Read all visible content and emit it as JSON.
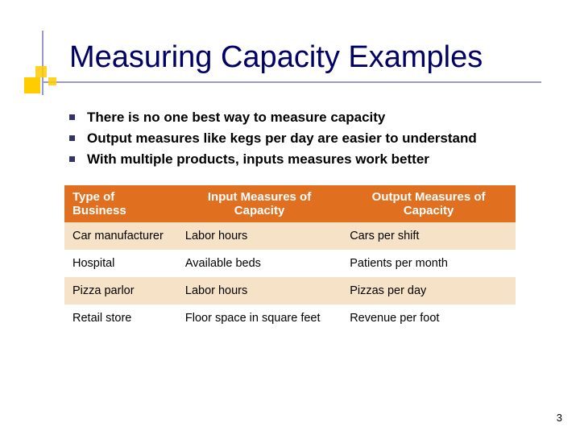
{
  "title": "Measuring Capacity Examples",
  "bullets": [
    "There is no one best way to measure capacity",
    "Output measures like kegs per day are easier to understand",
    "With multiple products, inputs measures work better"
  ],
  "table": {
    "headers": [
      "Type of Business",
      "Input Measures of Capacity",
      "Output Measures of Capacity"
    ],
    "rows": [
      [
        "Car manufacturer",
        "Labor hours",
        "Cars per shift"
      ],
      [
        "Hospital",
        "Available beds",
        "Patients per month"
      ],
      [
        "Pizza parlor",
        "Labor hours",
        "Pizzas per day"
      ],
      [
        "Retail store",
        "Floor space in square feet",
        "Revenue per foot"
      ]
    ],
    "header_bg": "#e07020",
    "header_color": "#ffffff",
    "row_alt_bg": "#f6e3c7",
    "row_bg": "#ffffff",
    "body_fontsize": 14.5,
    "header_fontsize": 15
  },
  "page_number": "3",
  "colors": {
    "title_color": "#000066",
    "accent_square": "#ffcc00",
    "accent_line": "#9999cc",
    "bullet_square": "#333366",
    "background": "#ffffff"
  },
  "typography": {
    "title_fontsize": 38,
    "bullet_fontsize": 17,
    "bullet_fontweight": "bold"
  }
}
